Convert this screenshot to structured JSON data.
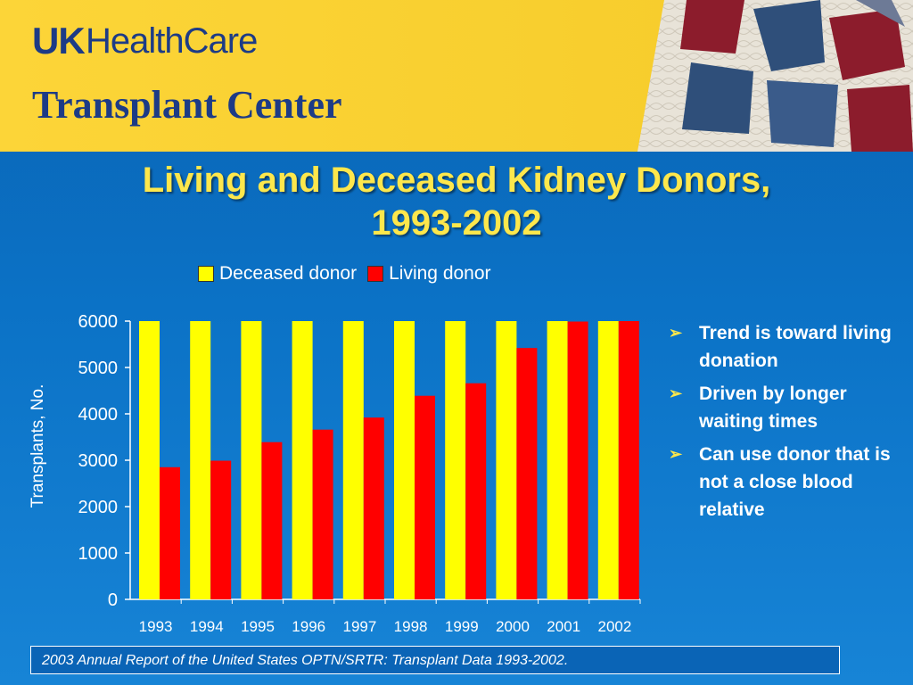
{
  "header": {
    "logo_uk": "UK",
    "logo_healthcare": "HealthCare",
    "logo_center": "Transplant Center"
  },
  "slide": {
    "title_line1": "Living and Deceased Kidney Donors,",
    "title_line2": "1993-2002",
    "bullets": [
      "Trend is toward living donation",
      "Driven by longer waiting times",
      "Can use donor that is not a close blood relative"
    ],
    "footer": "2003 Annual Report of the United States OPTN/SRTR: Transplant Data 1993-2002."
  },
  "colors": {
    "deceased": "#ffff00",
    "living": "#ff0000",
    "title": "#fde74c",
    "banner": "#fcd538",
    "background": "#0b72c6"
  },
  "chart_data": {
    "type": "bar",
    "categories": [
      "1993",
      "1994",
      "1995",
      "1996",
      "1997",
      "1998",
      "1999",
      "2000",
      "2001",
      "2002"
    ],
    "series": [
      {
        "name": "Deceased donor",
        "values": [
          6000,
          6000,
          6000,
          6000,
          6000,
          6000,
          6000,
          6000,
          6000,
          6000
        ]
      },
      {
        "name": "Living donor",
        "values": [
          2850,
          2990,
          3390,
          3660,
          3920,
          4390,
          4660,
          5420,
          5990,
          6000
        ]
      }
    ],
    "ylabel": "Transplants, No.",
    "xlabel": "",
    "ylim": [
      0,
      6000
    ],
    "yticks": [
      "0",
      "1000",
      "2000",
      "3000",
      "4000",
      "5000",
      "6000"
    ],
    "legend": "top",
    "grid": false
  }
}
